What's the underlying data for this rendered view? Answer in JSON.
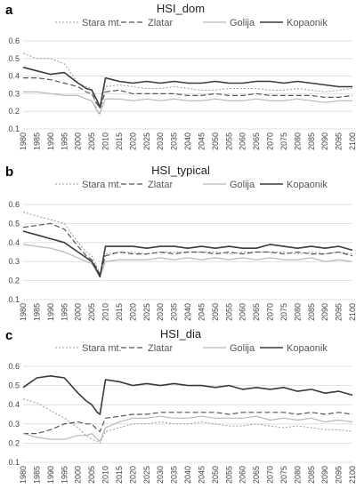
{
  "chart_data": [
    {
      "type": "line",
      "panel": "a",
      "title": "HSI_dom",
      "ylim": [
        0.1,
        0.6
      ],
      "yticks": [
        "0.1",
        "0.2",
        "0.3",
        "0.4",
        "0.5",
        "0.6"
      ],
      "xlim": [
        1980,
        2100
      ],
      "xticks": [
        "1980",
        "1985",
        "1990",
        "1995",
        "2000",
        "2005",
        "2010",
        "2015",
        "2020",
        "2025",
        "2030",
        "2035",
        "2040",
        "2045",
        "2050",
        "2055",
        "2060",
        "2065",
        "2070",
        "2075",
        "2080",
        "2085",
        "2090",
        "2095",
        "2100"
      ],
      "grid": true,
      "legend": "top",
      "x": [
        1980,
        1985,
        1990,
        1995,
        2000,
        2003,
        2005,
        2007,
        2008,
        2010,
        2015,
        2020,
        2025,
        2030,
        2035,
        2040,
        2045,
        2050,
        2055,
        2060,
        2065,
        2070,
        2075,
        2080,
        2085,
        2090,
        2095,
        2100
      ],
      "series": [
        {
          "name": "Stara mt.",
          "values": [
            0.53,
            0.5,
            0.5,
            0.47,
            0.36,
            0.34,
            0.33,
            0.2,
            0.18,
            0.34,
            0.35,
            0.34,
            0.33,
            0.33,
            0.34,
            0.33,
            0.32,
            0.32,
            0.33,
            0.33,
            0.33,
            0.32,
            0.32,
            0.33,
            0.32,
            0.31,
            0.32,
            0.33
          ]
        },
        {
          "name": "Zlatar",
          "values": [
            0.39,
            0.39,
            0.38,
            0.36,
            0.34,
            0.31,
            0.3,
            0.24,
            0.22,
            0.31,
            0.32,
            0.3,
            0.3,
            0.3,
            0.3,
            0.29,
            0.29,
            0.3,
            0.29,
            0.29,
            0.3,
            0.29,
            0.29,
            0.29,
            0.29,
            0.28,
            0.28,
            0.29
          ]
        },
        {
          "name": "Golija",
          "values": [
            0.31,
            0.31,
            0.3,
            0.29,
            0.29,
            0.27,
            0.26,
            0.2,
            0.19,
            0.27,
            0.27,
            0.26,
            0.27,
            0.26,
            0.27,
            0.26,
            0.26,
            0.27,
            0.26,
            0.26,
            0.27,
            0.26,
            0.26,
            0.27,
            0.26,
            0.25,
            0.26,
            0.26
          ]
        },
        {
          "name": "Kopaonik",
          "values": [
            0.45,
            0.43,
            0.41,
            0.42,
            0.36,
            0.33,
            0.32,
            0.26,
            0.22,
            0.39,
            0.37,
            0.36,
            0.37,
            0.36,
            0.37,
            0.36,
            0.36,
            0.37,
            0.36,
            0.36,
            0.37,
            0.37,
            0.36,
            0.37,
            0.36,
            0.35,
            0.34,
            0.34
          ]
        }
      ]
    },
    {
      "type": "line",
      "panel": "b",
      "title": "HSI_typical",
      "ylim": [
        0.1,
        0.6
      ],
      "yticks": [
        "0.1",
        "0.2",
        "0.3",
        "0.4",
        "0.5",
        "0.6"
      ],
      "xlim": [
        1980,
        2100
      ],
      "xticks": [
        "1980",
        "1985",
        "1990",
        "1995",
        "2000",
        "2005",
        "2010",
        "2015",
        "2020",
        "2025",
        "2030",
        "2035",
        "2040",
        "2045",
        "2050",
        "2055",
        "2060",
        "2065",
        "2070",
        "2075",
        "2080",
        "2085",
        "2090",
        "2095",
        "2100"
      ],
      "grid": true,
      "legend": "top",
      "x": [
        1980,
        1985,
        1990,
        1995,
        2000,
        2003,
        2005,
        2007,
        2008,
        2010,
        2015,
        2020,
        2025,
        2030,
        2035,
        2040,
        2045,
        2050,
        2055,
        2060,
        2065,
        2070,
        2075,
        2080,
        2085,
        2090,
        2095,
        2100
      ],
      "series": [
        {
          "name": "Stara mt.",
          "values": [
            0.56,
            0.54,
            0.52,
            0.5,
            0.4,
            0.35,
            0.33,
            0.27,
            0.24,
            0.34,
            0.35,
            0.35,
            0.34,
            0.35,
            0.35,
            0.35,
            0.35,
            0.35,
            0.34,
            0.35,
            0.35,
            0.35,
            0.35,
            0.34,
            0.35,
            0.34,
            0.35,
            0.34
          ]
        },
        {
          "name": "Zlatar",
          "values": [
            0.48,
            0.49,
            0.5,
            0.47,
            0.38,
            0.33,
            0.31,
            0.26,
            0.23,
            0.33,
            0.35,
            0.34,
            0.34,
            0.35,
            0.34,
            0.35,
            0.35,
            0.34,
            0.35,
            0.34,
            0.35,
            0.35,
            0.34,
            0.35,
            0.34,
            0.34,
            0.35,
            0.33
          ]
        },
        {
          "name": "Golija",
          "values": [
            0.39,
            0.38,
            0.37,
            0.35,
            0.32,
            0.3,
            0.29,
            0.24,
            0.22,
            0.3,
            0.31,
            0.31,
            0.31,
            0.32,
            0.31,
            0.32,
            0.31,
            0.32,
            0.31,
            0.32,
            0.31,
            0.32,
            0.31,
            0.31,
            0.32,
            0.3,
            0.31,
            0.3
          ]
        },
        {
          "name": "Kopaonik",
          "values": [
            0.46,
            0.44,
            0.42,
            0.4,
            0.35,
            0.32,
            0.3,
            0.25,
            0.22,
            0.38,
            0.38,
            0.38,
            0.37,
            0.38,
            0.38,
            0.37,
            0.38,
            0.37,
            0.38,
            0.37,
            0.37,
            0.39,
            0.38,
            0.37,
            0.38,
            0.37,
            0.38,
            0.36
          ]
        }
      ]
    },
    {
      "type": "line",
      "panel": "c",
      "title": "HSI_dia",
      "ylim": [
        0.1,
        0.6
      ],
      "yticks": [
        "0.1",
        "0.2",
        "0.3",
        "0.4",
        "0.5",
        "0.6"
      ],
      "xlim": [
        1980,
        2100
      ],
      "xticks": [
        "1980",
        "1985",
        "1990",
        "1995",
        "2000",
        "2005",
        "2010",
        "2015",
        "2020",
        "2025",
        "2030",
        "2035",
        "2040",
        "2045",
        "2050",
        "2055",
        "2060",
        "2065",
        "2070",
        "2075",
        "2080",
        "2085",
        "2090",
        "2095",
        "2100"
      ],
      "grid": true,
      "legend": "top",
      "x": [
        1980,
        1985,
        1990,
        1995,
        2000,
        2003,
        2005,
        2007,
        2008,
        2010,
        2015,
        2020,
        2025,
        2030,
        2035,
        2040,
        2045,
        2050,
        2055,
        2060,
        2065,
        2070,
        2075,
        2080,
        2085,
        2090,
        2095,
        2100
      ],
      "series": [
        {
          "name": "Stara mt.",
          "values": [
            0.43,
            0.41,
            0.37,
            0.33,
            0.28,
            0.24,
            0.22,
            0.21,
            0.2,
            0.26,
            0.28,
            0.3,
            0.3,
            0.31,
            0.3,
            0.3,
            0.31,
            0.3,
            0.29,
            0.29,
            0.3,
            0.29,
            0.28,
            0.29,
            0.28,
            0.27,
            0.27,
            0.26
          ]
        },
        {
          "name": "Zlatar",
          "values": [
            0.25,
            0.25,
            0.27,
            0.3,
            0.31,
            0.3,
            0.3,
            0.27,
            0.26,
            0.33,
            0.34,
            0.35,
            0.35,
            0.36,
            0.36,
            0.36,
            0.36,
            0.36,
            0.35,
            0.36,
            0.36,
            0.36,
            0.36,
            0.35,
            0.36,
            0.35,
            0.36,
            0.35
          ]
        },
        {
          "name": "Golija",
          "values": [
            0.25,
            0.23,
            0.22,
            0.22,
            0.24,
            0.24,
            0.25,
            0.22,
            0.21,
            0.28,
            0.31,
            0.33,
            0.33,
            0.34,
            0.33,
            0.33,
            0.34,
            0.33,
            0.33,
            0.33,
            0.34,
            0.32,
            0.33,
            0.32,
            0.33,
            0.31,
            0.32,
            0.31
          ]
        },
        {
          "name": "Kopaonik",
          "values": [
            0.49,
            0.54,
            0.55,
            0.54,
            0.46,
            0.42,
            0.4,
            0.36,
            0.35,
            0.53,
            0.52,
            0.5,
            0.51,
            0.5,
            0.51,
            0.5,
            0.5,
            0.49,
            0.5,
            0.48,
            0.49,
            0.48,
            0.49,
            0.47,
            0.48,
            0.46,
            0.47,
            0.45
          ]
        }
      ]
    }
  ],
  "style": {
    "series_colors": [
      "#9a9a9a",
      "#555555",
      "#b8b8b8",
      "#3a3a3a"
    ],
    "series_dash": [
      "2,2",
      "6,3",
      "",
      ""
    ],
    "series_width": [
      1,
      1.2,
      1.2,
      1.6
    ],
    "grid_color": "#d9d9d9"
  }
}
